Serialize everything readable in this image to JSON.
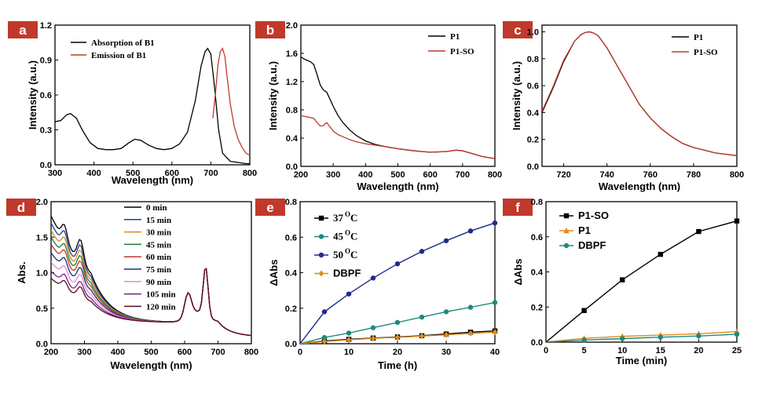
{
  "chart_data": [
    {
      "id": "a",
      "panel_label": "a",
      "type": "line",
      "xlabel": "Wavelength (nm)",
      "ylabel": "Intensity (a.u.)",
      "xlim": [
        300,
        800
      ],
      "ylim": [
        0,
        1.2
      ],
      "xticks": [
        "300",
        "400",
        "500",
        "600",
        "700",
        "800"
      ],
      "yticks": [
        "0.0",
        "0.3",
        "0.6",
        "0.9",
        "1.2"
      ],
      "legend_position": "top-left",
      "legend_font": "serif",
      "series": [
        {
          "name": "Absorption of B1",
          "color": "#000000",
          "x": [
            300,
            315,
            330,
            340,
            355,
            370,
            390,
            410,
            430,
            450,
            470,
            490,
            505,
            520,
            540,
            560,
            580,
            600,
            620,
            640,
            660,
            675,
            685,
            692,
            700,
            710,
            720,
            730,
            750,
            770,
            790,
            800
          ],
          "y": [
            0.37,
            0.38,
            0.43,
            0.44,
            0.4,
            0.3,
            0.19,
            0.14,
            0.13,
            0.13,
            0.14,
            0.19,
            0.22,
            0.21,
            0.17,
            0.14,
            0.13,
            0.14,
            0.18,
            0.28,
            0.55,
            0.85,
            0.97,
            1.0,
            0.95,
            0.65,
            0.3,
            0.1,
            0.03,
            0.02,
            0.01,
            0.01
          ]
        },
        {
          "name": "Emission of B1",
          "color": "#c0392b",
          "x": [
            705,
            712,
            718,
            724,
            730,
            736,
            742,
            750,
            760,
            770,
            780,
            790,
            800
          ],
          "y": [
            0.4,
            0.62,
            0.85,
            0.97,
            1.0,
            0.93,
            0.75,
            0.52,
            0.33,
            0.22,
            0.15,
            0.1,
            0.08
          ]
        }
      ]
    },
    {
      "id": "b",
      "panel_label": "b",
      "type": "line",
      "xlabel": "Wavelength (nm)",
      "ylabel": "Intensity (a.u.)",
      "xlim": [
        200,
        800
      ],
      "ylim": [
        0,
        2.0
      ],
      "xticks": [
        "200",
        "300",
        "400",
        "500",
        "600",
        "700",
        "800"
      ],
      "yticks": [
        "0.0",
        "0.4",
        "0.8",
        "1.2",
        "1.6",
        "2.0"
      ],
      "legend_position": "top-right",
      "legend_font": "serif",
      "series": [
        {
          "name": "P1",
          "color": "#000000",
          "x": [
            200,
            210,
            220,
            230,
            240,
            250,
            260,
            270,
            280,
            290,
            300,
            315,
            330,
            350,
            370,
            400,
            430,
            460,
            500,
            550,
            600,
            650,
            680,
            700,
            730,
            760,
            800
          ],
          "y": [
            1.55,
            1.52,
            1.5,
            1.48,
            1.44,
            1.3,
            1.15,
            1.08,
            1.05,
            0.95,
            0.85,
            0.72,
            0.62,
            0.52,
            0.44,
            0.36,
            0.31,
            0.28,
            0.25,
            0.22,
            0.2,
            0.21,
            0.23,
            0.22,
            0.18,
            0.14,
            0.11
          ]
        },
        {
          "name": "P1-SO",
          "color": "#c0392b",
          "x": [
            200,
            210,
            220,
            230,
            240,
            250,
            260,
            270,
            280,
            290,
            300,
            315,
            330,
            350,
            370,
            400,
            430,
            460,
            500,
            550,
            600,
            650,
            680,
            700,
            730,
            760,
            800
          ],
          "y": [
            0.72,
            0.71,
            0.7,
            0.69,
            0.68,
            0.62,
            0.57,
            0.58,
            0.62,
            0.56,
            0.5,
            0.45,
            0.42,
            0.38,
            0.35,
            0.32,
            0.3,
            0.28,
            0.25,
            0.22,
            0.2,
            0.21,
            0.23,
            0.22,
            0.18,
            0.14,
            0.11
          ]
        }
      ]
    },
    {
      "id": "c",
      "panel_label": "c",
      "type": "line",
      "xlabel": "Wavelength (nm)",
      "ylabel": "Intensity (a.u.)",
      "xlim": [
        710,
        800
      ],
      "ylim": [
        0,
        1.05
      ],
      "xticks": [
        "720",
        "740",
        "760",
        "780",
        "800"
      ],
      "ytick_values": [
        0.0,
        0.2,
        0.4,
        0.6,
        0.8,
        1.0
      ],
      "yticks": [
        "0.0",
        "0.2",
        "0.4",
        "0.6",
        "0.8",
        "1.0"
      ],
      "legend_position": "top-right",
      "legend_font": "serif",
      "series": [
        {
          "name": "P1",
          "color": "#000000",
          "x": [
            710,
            715,
            720,
            725,
            728,
            730,
            732,
            734,
            736,
            740,
            745,
            750,
            755,
            760,
            765,
            770,
            775,
            780,
            785,
            790,
            795,
            800
          ],
          "y": [
            0.4,
            0.58,
            0.78,
            0.93,
            0.98,
            0.995,
            1.0,
            0.99,
            0.97,
            0.88,
            0.74,
            0.6,
            0.46,
            0.36,
            0.28,
            0.22,
            0.17,
            0.14,
            0.12,
            0.1,
            0.09,
            0.08
          ]
        },
        {
          "name": "P1-SO",
          "color": "#c0392b",
          "x": [
            710,
            715,
            720,
            725,
            728,
            730,
            732,
            734,
            736,
            740,
            745,
            750,
            755,
            760,
            765,
            770,
            775,
            780,
            785,
            790,
            795,
            800
          ],
          "y": [
            0.41,
            0.59,
            0.79,
            0.93,
            0.98,
            0.995,
            1.0,
            0.99,
            0.97,
            0.88,
            0.74,
            0.6,
            0.46,
            0.36,
            0.28,
            0.22,
            0.17,
            0.14,
            0.12,
            0.1,
            0.09,
            0.08
          ]
        }
      ]
    },
    {
      "id": "d",
      "panel_label": "d",
      "type": "line",
      "xlabel": "Wavelength (nm)",
      "ylabel": "Abs.",
      "xlim": [
        200,
        800
      ],
      "ylim": [
        0,
        2.0
      ],
      "xticks": [
        "200",
        "300",
        "400",
        "500",
        "600",
        "700",
        "800"
      ],
      "yticks": [
        "0.0",
        "0.5",
        "1.0",
        "1.5",
        "2.0"
      ],
      "legend_position": "top-center",
      "legend_font": "serif",
      "start_values": [
        1.8,
        1.7,
        1.6,
        1.5,
        1.4,
        1.28,
        1.15,
        1.02,
        0.92
      ],
      "series": [
        {
          "name": "0 min",
          "color": "#000000"
        },
        {
          "name": "15 min",
          "color": "#1f3f9a"
        },
        {
          "name": "30 min",
          "color": "#e08a1e"
        },
        {
          "name": "45 min",
          "color": "#1e7b3a"
        },
        {
          "name": "60 min",
          "color": "#c0392b"
        },
        {
          "name": "75 min",
          "color": "#1a2e78"
        },
        {
          "name": "90 min",
          "color": "#e48ad6"
        },
        {
          "name": "105 min",
          "color": "#7a1f8e"
        },
        {
          "name": "120 min",
          "color": "#5a0e1e"
        }
      ]
    },
    {
      "id": "e",
      "panel_label": "e",
      "type": "line",
      "xlabel": "Time (h)",
      "ylabel": "ΔAbs",
      "xlim": [
        0,
        40
      ],
      "ylim": [
        0,
        0.8
      ],
      "xticks": [
        "0",
        "10",
        "20",
        "30",
        "40"
      ],
      "yticks": [
        "0.0",
        "0.2",
        "0.4",
        "0.6",
        "0.8"
      ],
      "legend_position": "top-left",
      "series": [
        {
          "name": "37",
          "sup": "O",
          "suffix": "C",
          "color": "#000000",
          "marker": "square",
          "font": "serif",
          "x": [
            0,
            5,
            10,
            15,
            20,
            25,
            30,
            35,
            40
          ],
          "y": [
            0,
            0.015,
            0.025,
            0.032,
            0.038,
            0.045,
            0.055,
            0.065,
            0.072
          ]
        },
        {
          "name": "45",
          "sup": "O",
          "suffix": "C",
          "color": "#1e8a7a",
          "marker": "circle",
          "font": "serif",
          "x": [
            0,
            5,
            10,
            15,
            20,
            25,
            30,
            35,
            40
          ],
          "y": [
            0,
            0.035,
            0.06,
            0.09,
            0.12,
            0.15,
            0.18,
            0.205,
            0.232
          ]
        },
        {
          "name": "50",
          "sup": "O",
          "suffix": "C",
          "color": "#1f2a8c",
          "marker": "circle",
          "font": "serif",
          "x": [
            0,
            5,
            10,
            15,
            20,
            25,
            30,
            35,
            40
          ],
          "y": [
            0,
            0.18,
            0.28,
            0.37,
            0.45,
            0.52,
            0.58,
            0.635,
            0.68
          ]
        },
        {
          "name": "DBPF",
          "color": "#e08a1e",
          "marker": "diamond",
          "font": "sans",
          "x": [
            0,
            5,
            10,
            15,
            20,
            25,
            30,
            35,
            40
          ],
          "y": [
            0,
            0.012,
            0.022,
            0.03,
            0.036,
            0.043,
            0.05,
            0.058,
            0.065
          ]
        }
      ]
    },
    {
      "id": "f",
      "panel_label": "f",
      "type": "line",
      "xlabel": "Time (min)",
      "ylabel": "ΔAbs",
      "xlim": [
        0,
        25
      ],
      "ylim": [
        0,
        0.8
      ],
      "xticks": [
        "0",
        "5",
        "10",
        "15",
        "20",
        "25"
      ],
      "yticks": [
        "0.0",
        "0.2",
        "0.4",
        "0.6",
        "0.8"
      ],
      "legend_position": "top-left",
      "series": [
        {
          "name": "P1-SO",
          "color": "#000000",
          "marker": "square",
          "font": "sans",
          "x": [
            0,
            5,
            10,
            15,
            20,
            25
          ],
          "y": [
            0,
            0.18,
            0.355,
            0.5,
            0.63,
            0.69
          ]
        },
        {
          "name": "P1",
          "color": "#e08a1e",
          "marker": "triangle",
          "font": "sans",
          "x": [
            0,
            5,
            10,
            15,
            20,
            25
          ],
          "y": [
            0,
            0.022,
            0.033,
            0.04,
            0.048,
            0.06
          ]
        },
        {
          "name": "DBPF",
          "color": "#1e8a7a",
          "marker": "circle",
          "font": "sans",
          "x": [
            0,
            5,
            10,
            15,
            20,
            25
          ],
          "y": [
            0,
            0.012,
            0.02,
            0.028,
            0.035,
            0.045
          ]
        }
      ]
    }
  ]
}
